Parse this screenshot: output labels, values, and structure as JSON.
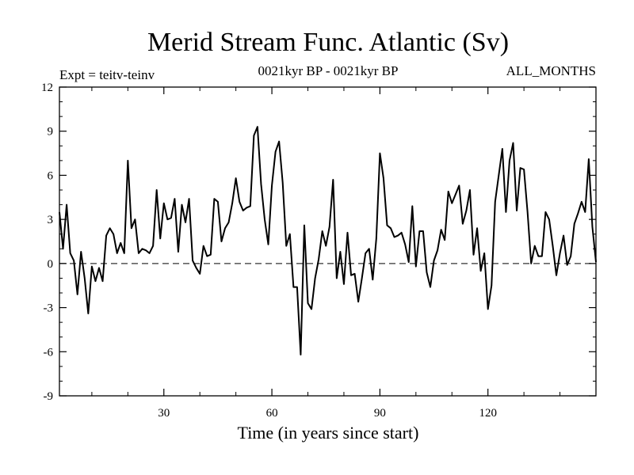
{
  "chart_data": {
    "type": "line",
    "title": "Merid Stream Func. Atlantic (Sv)",
    "subtitle_left": "Expt = teitv-teinv",
    "subtitle_center": "0021kyr BP - 0021kyr BP",
    "subtitle_right": "ALL_MONTHS",
    "xlabel": "Time (in years since start)",
    "ylabel": "",
    "xlim": [
      1,
      150
    ],
    "ylim": [
      -9,
      12
    ],
    "xticks": [
      30,
      60,
      90,
      120
    ],
    "yticks": [
      -9,
      -6,
      -3,
      0,
      3,
      6,
      9,
      12
    ],
    "reference_line": {
      "y": 0,
      "style": "dashed"
    },
    "series": [
      {
        "name": "Merid Stream Func. Atlantic",
        "x": [
          1,
          2,
          3,
          4,
          5,
          6,
          7,
          8,
          9,
          10,
          11,
          12,
          13,
          14,
          15,
          16,
          17,
          18,
          19,
          20,
          21,
          22,
          23,
          24,
          25,
          26,
          27,
          28,
          29,
          30,
          31,
          32,
          33,
          34,
          35,
          36,
          37,
          38,
          39,
          40,
          41,
          42,
          43,
          44,
          45,
          46,
          47,
          48,
          49,
          50,
          51,
          52,
          53,
          54,
          55,
          56,
          57,
          58,
          59,
          60,
          61,
          62,
          63,
          64,
          65,
          66,
          67,
          68,
          69,
          70,
          71,
          72,
          73,
          74,
          75,
          76,
          77,
          78,
          79,
          80,
          81,
          82,
          83,
          84,
          85,
          86,
          87,
          88,
          89,
          90,
          91,
          92,
          93,
          94,
          95,
          96,
          97,
          98,
          99,
          100,
          101,
          102,
          103,
          104,
          105,
          106,
          107,
          108,
          109,
          110,
          111,
          112,
          113,
          114,
          115,
          116,
          117,
          118,
          119,
          120,
          121,
          122,
          123,
          124,
          125,
          126,
          127,
          128,
          129,
          130,
          131,
          132,
          133,
          134,
          135,
          136,
          137,
          138,
          139,
          140,
          141,
          142,
          143,
          144,
          145,
          146,
          147,
          148,
          149,
          150
        ],
        "values": [
          3.5,
          1,
          4,
          0.7,
          0.2,
          -2.1,
          0.8,
          -1,
          -3.4,
          -0.2,
          -1.2,
          -0.3,
          -1.2,
          1.9,
          2.4,
          2,
          0.7,
          1.4,
          0.7,
          7,
          2.4,
          3,
          0.7,
          1,
          0.9,
          0.7,
          1.2,
          5,
          1.7,
          4.1,
          3,
          3.1,
          4.4,
          0.8,
          4,
          2.8,
          4.4,
          0.2,
          -0.3,
          -0.7,
          1.2,
          0.5,
          0.6,
          4.4,
          4.2,
          1.5,
          2.4,
          2.8,
          4.1,
          5.8,
          4.2,
          3.6,
          3.8,
          3.9,
          8.7,
          9.3,
          5.4,
          3,
          1.3,
          5.3,
          7.6,
          8.3,
          5.5,
          1.2,
          2,
          -1.6,
          -1.6,
          -6.2,
          2.6,
          -2.7,
          -3.1,
          -1,
          0.3,
          2.2,
          1.2,
          2.5,
          5.7,
          -1,
          0.8,
          -1.4,
          2.1,
          -0.8,
          -0.7,
          -2.6,
          -1,
          0.7,
          1,
          -1.1,
          1.7,
          7.5,
          5.8,
          2.6,
          2.4,
          1.8,
          1.9,
          2.1,
          1.3,
          0.1,
          3.9,
          -0.2,
          2.2,
          2.2,
          -0.6,
          -1.6,
          0.2,
          0.9,
          2.3,
          1.6,
          4.9,
          4.1,
          4.7,
          5.3,
          2.7,
          3.6,
          5,
          0.6,
          2.4,
          -0.5,
          0.7,
          -3.1,
          -1.5,
          4.2,
          6,
          7.8,
          3.5,
          7,
          8.2,
          3.6,
          6.5,
          6.4,
          3.5,
          0,
          1.2,
          0.5,
          0.5,
          3.5,
          3,
          1.2,
          -0.8,
          0.7,
          1.9,
          -0.1,
          0.5,
          2.7,
          3.4,
          4.2,
          3.5,
          7.1,
          2.5,
          0.1
        ]
      }
    ]
  }
}
